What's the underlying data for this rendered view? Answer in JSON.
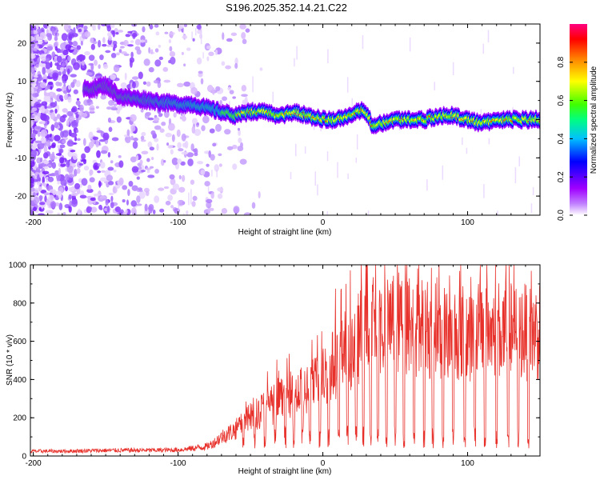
{
  "figure": {
    "title": "S196.2025.352.14.21.C22"
  },
  "chart_data": [
    {
      "type": "heatmap",
      "title": "S196.2025.352.14.21.C22",
      "xlabel": "Height of straight line (km)",
      "ylabel": "Frequency (Hz)",
      "xlim": [
        -202,
        150
      ],
      "ylim": [
        -25,
        25
      ],
      "xticks": [
        -200,
        -100,
        0,
        100
      ],
      "yticks": [
        -20,
        -10,
        0,
        10,
        20
      ],
      "colorbar": {
        "label": "Normalized spectral amplitude",
        "range": [
          0,
          1
        ],
        "ticks": [
          0.0,
          0.2,
          0.4,
          0.6,
          0.8
        ],
        "tick_labels": [
          "0.0",
          "0.2",
          "0.4",
          "0.6",
          "0.8"
        ],
        "colormap": [
          "#ffffff",
          "#a000ff",
          "#0000ff",
          "#00c0ff",
          "#00ff80",
          "#40ff00",
          "#ffff00",
          "#ff8000",
          "#ff0000",
          "#ff0080"
        ]
      },
      "ridge": {
        "description_points_x": [
          -160,
          -150,
          -140,
          -120,
          -100,
          -90,
          -80,
          -70,
          -60,
          -50,
          -40,
          -30,
          -20,
          -10,
          0,
          10,
          20,
          28,
          35,
          40,
          50,
          60,
          70,
          80,
          90,
          100,
          110,
          120,
          130,
          140,
          150
        ],
        "description_points_y": [
          8,
          9,
          6,
          5,
          4,
          4,
          3,
          2,
          1,
          2,
          2,
          1,
          2,
          1,
          0,
          0,
          1,
          3,
          -2,
          -1,
          0,
          0,
          0,
          1,
          1,
          0,
          -1,
          0,
          0,
          0,
          0
        ]
      }
    },
    {
      "type": "line",
      "title": "",
      "xlabel": "Height of straight line (km)",
      "ylabel": "SNR (10 * v/v)",
      "xlim": [
        -202,
        150
      ],
      "ylim": [
        0,
        1000
      ],
      "xticks": [
        -200,
        -100,
        0,
        100
      ],
      "yticks": [
        0,
        200,
        400,
        600,
        800,
        1000
      ],
      "series": [
        {
          "name": "SNR",
          "color": "#e8302a",
          "x": [
            -202,
            -180,
            -160,
            -140,
            -120,
            -100,
            -90,
            -80,
            -75,
            -70,
            -65,
            -60,
            -55,
            -50,
            -45,
            -40,
            -35,
            -30,
            -25,
            -20,
            -15,
            -10,
            -5,
            0,
            5,
            10,
            15,
            20,
            25,
            30,
            35,
            40,
            45,
            50,
            55,
            60,
            65,
            70,
            75,
            80,
            85,
            90,
            95,
            100,
            110,
            120,
            130,
            140,
            150
          ],
          "values": [
            25,
            25,
            28,
            30,
            30,
            32,
            40,
            50,
            70,
            100,
            120,
            140,
            170,
            200,
            230,
            250,
            270,
            290,
            300,
            330,
            340,
            350,
            380,
            420,
            460,
            500,
            540,
            580,
            620,
            660,
            680,
            680,
            680,
            690,
            700,
            690,
            680,
            670,
            660,
            650,
            650,
            650,
            650,
            650,
            650,
            650,
            650,
            650,
            650
          ],
          "dips_x": [
            -55,
            -47,
            -40,
            -33,
            -26,
            -20,
            -14,
            -9,
            -2,
            4,
            11,
            17,
            23,
            28,
            33,
            38,
            44,
            50,
            56,
            63,
            70,
            76,
            83,
            90,
            98,
            105,
            112,
            120,
            128,
            135,
            142
          ]
        }
      ]
    }
  ]
}
